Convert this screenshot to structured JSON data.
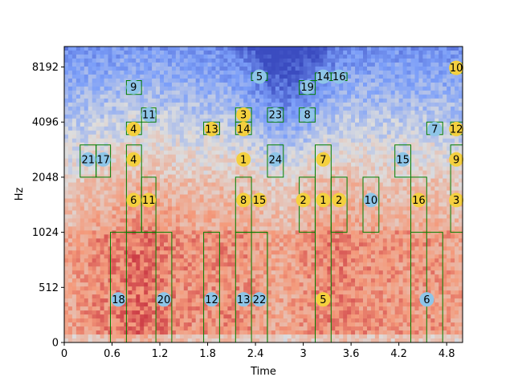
{
  "chart_data": {
    "type": "heatmap",
    "title": "",
    "xlabel": "Time",
    "ylabel": "Hz",
    "xlim": [
      0,
      5.0
    ],
    "y_scale": "log2",
    "ylim_hz": [
      0,
      11000
    ],
    "x_ticks": [
      "0",
      "0.6",
      "1.2",
      "1.8",
      "2.4",
      "3",
      "3.6",
      "4.2",
      "4.8"
    ],
    "x_tick_values": [
      0,
      0.6,
      1.2,
      1.8,
      2.4,
      3.0,
      3.6,
      4.2,
      4.8
    ],
    "y_ticks": [
      "0",
      "512",
      "1024",
      "2048",
      "4096",
      "8192"
    ],
    "y_tick_values": [
      0,
      512,
      1024,
      2048,
      4096,
      8192
    ],
    "colors": {
      "box_edge": "#008000",
      "yellow_marker": "#f4d03f",
      "blue_marker": "#8ec5e8",
      "low": "#3b4cc0",
      "mid": "#dddddd",
      "high": "#b40426"
    },
    "boxes": [
      {
        "t0": 0.2,
        "t1": 0.4,
        "f0": 2048,
        "f1": 3072
      },
      {
        "t0": 0.4,
        "t1": 0.58,
        "f0": 2048,
        "f1": 3072
      },
      {
        "t0": 0.58,
        "t1": 1.35,
        "f0": 0,
        "f1": 1024
      },
      {
        "t0": 0.78,
        "t1": 0.97,
        "f0": 5800,
        "f1": 6900
      },
      {
        "t0": 0.78,
        "t1": 0.97,
        "f0": 3500,
        "f1": 4096
      },
      {
        "t0": 0.78,
        "t1": 0.97,
        "f0": 1024,
        "f1": 3072
      },
      {
        "t0": 0.97,
        "t1": 1.15,
        "f0": 4096,
        "f1": 4900
      },
      {
        "t0": 0.97,
        "t1": 1.15,
        "f0": 1024,
        "f1": 2048
      },
      {
        "t0": 0.78,
        "t1": 1.15,
        "f0": 0,
        "f1": 1024
      },
      {
        "t0": 1.75,
        "t1": 1.95,
        "f0": 3500,
        "f1": 4096
      },
      {
        "t0": 1.75,
        "t1": 1.95,
        "f0": 0,
        "f1": 1024
      },
      {
        "t0": 2.15,
        "t1": 2.35,
        "f0": 4096,
        "f1": 4900
      },
      {
        "t0": 2.15,
        "t1": 2.35,
        "f0": 3500,
        "f1": 4096
      },
      {
        "t0": 2.15,
        "t1": 2.35,
        "f0": 1024,
        "f1": 2048
      },
      {
        "t0": 2.15,
        "t1": 2.55,
        "f0": 0,
        "f1": 1024
      },
      {
        "t0": 2.35,
        "t1": 2.55,
        "f0": 0,
        "f1": 1024
      },
      {
        "t0": 2.55,
        "t1": 2.75,
        "f0": 2048,
        "f1": 3072
      },
      {
        "t0": 2.55,
        "t1": 2.75,
        "f0": 4096,
        "f1": 4900
      },
      {
        "t0": 2.35,
        "t1": 2.55,
        "f0": 6900,
        "f1": 7600
      },
      {
        "t0": 2.95,
        "t1": 3.15,
        "f0": 1024,
        "f1": 2048
      },
      {
        "t0": 2.95,
        "t1": 3.15,
        "f0": 4096,
        "f1": 4900
      },
      {
        "t0": 2.95,
        "t1": 3.15,
        "f0": 5800,
        "f1": 6900
      },
      {
        "t0": 3.15,
        "t1": 3.35,
        "f0": 0,
        "f1": 3072
      },
      {
        "t0": 3.15,
        "t1": 3.35,
        "f0": 6900,
        "f1": 7600
      },
      {
        "t0": 3.35,
        "t1": 3.55,
        "f0": 6900,
        "f1": 7600
      },
      {
        "t0": 3.35,
        "t1": 3.55,
        "f0": 1024,
        "f1": 2048
      },
      {
        "t0": 3.75,
        "t1": 3.95,
        "f0": 1024,
        "f1": 2048
      },
      {
        "t0": 4.15,
        "t1": 4.35,
        "f0": 2048,
        "f1": 3072
      },
      {
        "t0": 4.35,
        "t1": 4.55,
        "f0": 0,
        "f1": 2048
      },
      {
        "t0": 4.35,
        "t1": 4.75,
        "f0": 0,
        "f1": 1024
      },
      {
        "t0": 4.55,
        "t1": 4.75,
        "f0": 3500,
        "f1": 4096
      },
      {
        "t0": 4.85,
        "t1": 5.0,
        "f0": 1024,
        "f1": 3072
      },
      {
        "t0": 4.85,
        "t1": 5.0,
        "f0": 3500,
        "f1": 4096
      },
      {
        "t0": 4.85,
        "t1": 5.0,
        "f0": 7600,
        "f1": 8600
      }
    ],
    "markers": [
      {
        "label": "21",
        "t": 0.3,
        "f": 2560,
        "color": "blue"
      },
      {
        "label": "17",
        "t": 0.49,
        "f": 2560,
        "color": "blue"
      },
      {
        "label": "18",
        "t": 0.68,
        "f": 400,
        "color": "blue"
      },
      {
        "label": "9",
        "t": 0.87,
        "f": 6350,
        "color": "blue"
      },
      {
        "label": "4",
        "t": 0.87,
        "f": 3750,
        "color": "yellow"
      },
      {
        "label": "4",
        "t": 0.87,
        "f": 2560,
        "color": "yellow"
      },
      {
        "label": "6",
        "t": 0.87,
        "f": 1536,
        "color": "yellow"
      },
      {
        "label": "11",
        "t": 1.06,
        "f": 4500,
        "color": "blue"
      },
      {
        "label": "11",
        "t": 1.06,
        "f": 1536,
        "color": "yellow"
      },
      {
        "label": "20",
        "t": 1.25,
        "f": 400,
        "color": "blue"
      },
      {
        "label": "13",
        "t": 1.85,
        "f": 3750,
        "color": "yellow"
      },
      {
        "label": "12",
        "t": 1.85,
        "f": 400,
        "color": "blue"
      },
      {
        "label": "3",
        "t": 2.25,
        "f": 4500,
        "color": "yellow"
      },
      {
        "label": "14",
        "t": 2.25,
        "f": 3750,
        "color": "yellow"
      },
      {
        "label": "1",
        "t": 2.25,
        "f": 2560,
        "color": "yellow"
      },
      {
        "label": "8",
        "t": 2.25,
        "f": 1536,
        "color": "yellow"
      },
      {
        "label": "13",
        "t": 2.25,
        "f": 400,
        "color": "blue"
      },
      {
        "label": "5",
        "t": 2.45,
        "f": 7250,
        "color": "blue"
      },
      {
        "label": "15",
        "t": 2.45,
        "f": 1536,
        "color": "yellow"
      },
      {
        "label": "22",
        "t": 2.45,
        "f": 400,
        "color": "blue"
      },
      {
        "label": "23",
        "t": 2.65,
        "f": 4500,
        "color": "blue"
      },
      {
        "label": "24",
        "t": 2.65,
        "f": 2560,
        "color": "blue"
      },
      {
        "label": "2",
        "t": 3.0,
        "f": 1536,
        "color": "yellow"
      },
      {
        "label": "19",
        "t": 3.05,
        "f": 6350,
        "color": "blue"
      },
      {
        "label": "8",
        "t": 3.05,
        "f": 4500,
        "color": "blue"
      },
      {
        "label": "14",
        "t": 3.25,
        "f": 7250,
        "color": "blue"
      },
      {
        "label": "7",
        "t": 3.25,
        "f": 2560,
        "color": "yellow"
      },
      {
        "label": "1",
        "t": 3.25,
        "f": 1536,
        "color": "yellow"
      },
      {
        "label": "5",
        "t": 3.25,
        "f": 400,
        "color": "yellow"
      },
      {
        "label": "16",
        "t": 3.45,
        "f": 7250,
        "color": "blue"
      },
      {
        "label": "2",
        "t": 3.45,
        "f": 1536,
        "color": "yellow"
      },
      {
        "label": "10",
        "t": 3.85,
        "f": 1536,
        "color": "blue"
      },
      {
        "label": "15",
        "t": 4.25,
        "f": 2560,
        "color": "blue"
      },
      {
        "label": "16",
        "t": 4.45,
        "f": 1536,
        "color": "yellow"
      },
      {
        "label": "6",
        "t": 4.55,
        "f": 400,
        "color": "blue"
      },
      {
        "label": "7",
        "t": 4.65,
        "f": 3750,
        "color": "blue"
      },
      {
        "label": "10",
        "t": 4.92,
        "f": 8100,
        "color": "yellow"
      },
      {
        "label": "12",
        "t": 4.92,
        "f": 3750,
        "color": "yellow"
      },
      {
        "label": "9",
        "t": 4.92,
        "f": 2560,
        "color": "yellow"
      },
      {
        "label": "3",
        "t": 4.92,
        "f": 1536,
        "color": "yellow"
      }
    ]
  }
}
